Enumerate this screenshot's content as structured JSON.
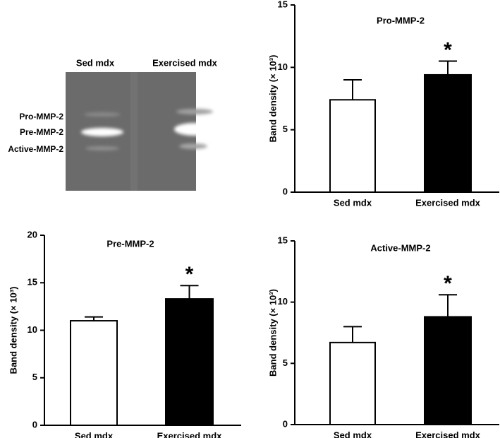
{
  "gel": {
    "lanes": [
      "Sed mdx",
      "Exercised mdx"
    ],
    "bands": [
      "Pro-MMP-2",
      "Pre-MMP-2",
      "Active-MMP-2"
    ]
  },
  "chart_data": [
    {
      "type": "bar",
      "title": "Pro-MMP-2",
      "y_label": "Band density (× 10³)",
      "categories": [
        "Sed mdx",
        "Exercised mdx"
      ],
      "values": [
        7.4,
        9.4
      ],
      "errors": [
        1.6,
        1.1
      ],
      "colors": [
        "#ffffff",
        "#000000"
      ],
      "significance_marks": [
        null,
        "*"
      ],
      "ylim": [
        0,
        15
      ],
      "yticks": [
        0,
        5,
        10,
        15
      ]
    },
    {
      "type": "bar",
      "title": "Pre-MMP-2",
      "y_label": "Band density (× 10³)",
      "categories": [
        "Sed mdx",
        "Exercised mdx"
      ],
      "values": [
        11.0,
        13.3
      ],
      "errors": [
        0.4,
        1.4
      ],
      "colors": [
        "#ffffff",
        "#000000"
      ],
      "significance_marks": [
        null,
        "*"
      ],
      "ylim": [
        0,
        20
      ],
      "yticks": [
        0,
        5,
        10,
        15,
        20
      ]
    },
    {
      "type": "bar",
      "title": "Active-MMP-2",
      "y_label": "Band density (× 10³)",
      "categories": [
        "Sed mdx",
        "Exercised mdx"
      ],
      "values": [
        6.7,
        8.8
      ],
      "errors": [
        1.3,
        1.8
      ],
      "colors": [
        "#ffffff",
        "#000000"
      ],
      "significance_marks": [
        null,
        "*"
      ],
      "ylim": [
        0,
        15
      ],
      "yticks": [
        0,
        5,
        10,
        15
      ]
    }
  ]
}
